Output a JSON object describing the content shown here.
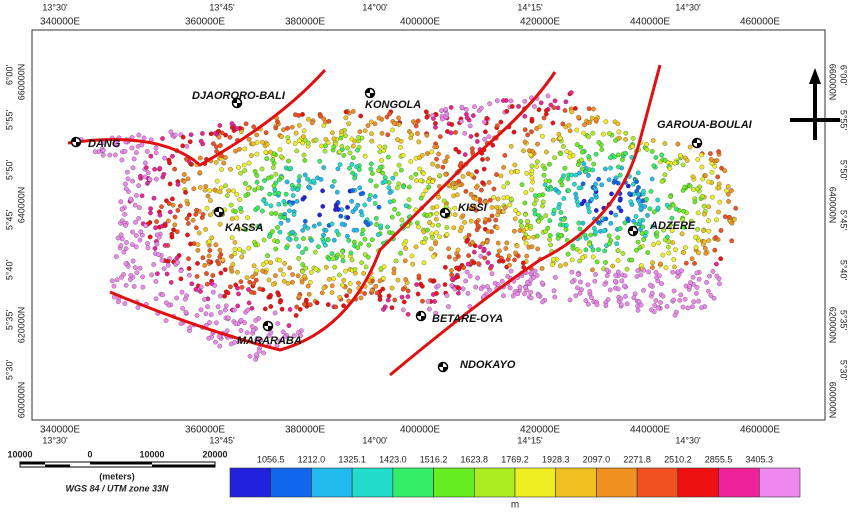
{
  "map": {
    "top_lon_labels": [
      "13°30'",
      "13°45'",
      "14°00'",
      "14°15'",
      "14°30'"
    ],
    "top_utm_labels": [
      "340000E",
      "360000E",
      "380000E",
      "400000E",
      "420000E",
      "440000E",
      "460000E"
    ],
    "bottom_utm_labels": [
      "340000E",
      "360000E",
      "380000E",
      "400000E",
      "420000E",
      "440000E",
      "460000E"
    ],
    "bottom_lon_labels": [
      "13°30'",
      "13°45'",
      "14°00'",
      "14°15'",
      "14°30'"
    ],
    "left_lat_labels": [
      "6°00'",
      "5°55'",
      "5°50'",
      "5°45'",
      "5°40'",
      "5°35'",
      "5°30'"
    ],
    "left_utm_labels": [
      "660000N",
      "640000N",
      "620000N",
      "600000N"
    ],
    "right_lat_labels": [
      "6°00'",
      "5°55'",
      "5°50'",
      "5°45'",
      "5°40'",
      "5°35'",
      "5°30'"
    ],
    "right_utm_labels": [
      "660000N",
      "640000N",
      "620000N",
      "600000N"
    ],
    "places": [
      "DJAORORO-BALI",
      "KONGOLA",
      "GAROUA-BOULAI",
      "DANG",
      "KASSA",
      "KISSI",
      "ADZERE",
      "MARARABA",
      "BETARE-OYA",
      "NDOKAYO"
    ],
    "scale_labels": [
      "10000",
      "0",
      "10000",
      "20000"
    ],
    "scale_unit": "(meters)",
    "projection": "WGS 84 / UTM zone 33N",
    "legend": {
      "labels": [
        "1056.5",
        "1212.0",
        "1325.1",
        "1423.0",
        "1516.2",
        "1623.8",
        "1769.2",
        "1928.3",
        "2097.0",
        "2271.8",
        "2510.2",
        "2855.5",
        "3405.3"
      ],
      "colors": [
        "#2222dd",
        "#1166ee",
        "#22bbee",
        "#22ddcc",
        "#33ee66",
        "#66ee22",
        "#aaee22",
        "#eeee22",
        "#f0c020",
        "#f09020",
        "#f05020",
        "#ee1111",
        "#ee2299",
        "#ee88ee"
      ],
      "unit": "m"
    }
  }
}
